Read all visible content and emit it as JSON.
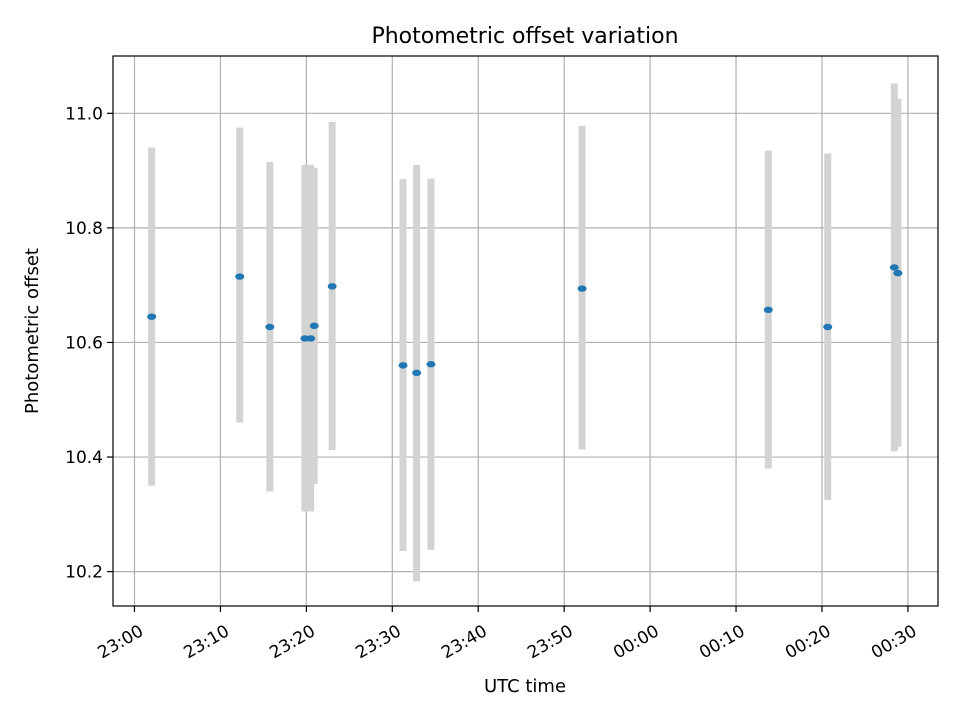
{
  "chart_data": {
    "type": "scatter",
    "title": "Photometric offset variation",
    "xlabel": "UTC time",
    "ylabel": "Photometric offset",
    "xlim": [
      "22:57:30",
      "00:33:30"
    ],
    "ylim": [
      10.14,
      11.1
    ],
    "x_ticks": [
      "23:00",
      "23:10",
      "23:20",
      "23:30",
      "23:40",
      "23:50",
      "00:00",
      "00:10",
      "00:20",
      "00:30"
    ],
    "y_ticks": [
      "10.2",
      "10.4",
      "10.6",
      "10.8",
      "11.0"
    ],
    "grid": true,
    "colors": {
      "point": "#1f77b4",
      "errorbar": "#d3d3d3",
      "grid": "#b0b0b0"
    },
    "points": [
      {
        "x": "23:02:00",
        "y": 10.645,
        "low": 10.35,
        "high": 10.94
      },
      {
        "x": "23:12:15",
        "y": 10.715,
        "low": 10.46,
        "high": 10.975
      },
      {
        "x": "23:15:45",
        "y": 10.627,
        "low": 10.34,
        "high": 10.915
      },
      {
        "x": "23:19:50",
        "y": 10.607,
        "low": 10.305,
        "high": 10.91
      },
      {
        "x": "23:20:30",
        "y": 10.607,
        "low": 10.305,
        "high": 10.91
      },
      {
        "x": "23:20:55",
        "y": 10.629,
        "low": 10.353,
        "high": 10.905
      },
      {
        "x": "23:23:00",
        "y": 10.698,
        "low": 10.412,
        "high": 10.985
      },
      {
        "x": "23:31:15",
        "y": 10.56,
        "low": 10.236,
        "high": 10.885
      },
      {
        "x": "23:32:50",
        "y": 10.547,
        "low": 10.183,
        "high": 10.91
      },
      {
        "x": "23:34:30",
        "y": 10.562,
        "low": 10.238,
        "high": 10.886
      },
      {
        "x": "23:52:05",
        "y": 10.694,
        "low": 10.413,
        "high": 10.978
      },
      {
        "x": "00:13:45",
        "y": 10.657,
        "low": 10.38,
        "high": 10.935
      },
      {
        "x": "00:20:40",
        "y": 10.627,
        "low": 10.325,
        "high": 10.93
      },
      {
        "x": "00:28:25",
        "y": 10.731,
        "low": 10.41,
        "high": 11.052
      },
      {
        "x": "00:28:50",
        "y": 10.721,
        "low": 10.418,
        "high": 11.025
      }
    ]
  }
}
